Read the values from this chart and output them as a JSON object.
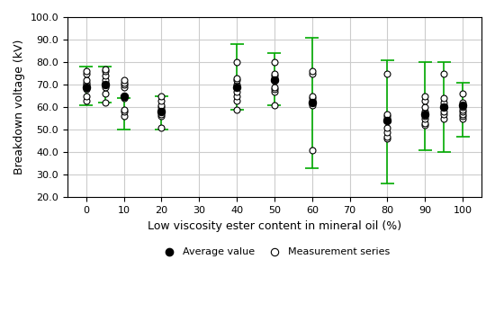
{
  "x_positions": [
    0,
    5,
    10,
    20,
    40,
    50,
    60,
    80,
    90,
    95,
    100
  ],
  "avg_values": [
    69,
    70,
    65,
    58,
    69,
    72,
    62,
    54,
    57,
    60,
    61
  ],
  "error_bars": {
    "0": [
      61,
      78
    ],
    "5": [
      62,
      78
    ],
    "10": [
      50,
      64
    ],
    "20": [
      50,
      65
    ],
    "40": [
      59,
      88
    ],
    "50": [
      61,
      84
    ],
    "60": [
      33,
      91
    ],
    "80": [
      26,
      81
    ],
    "90": [
      41,
      80
    ],
    "95": [
      40,
      80
    ],
    "100": [
      47,
      71
    ]
  },
  "measurement_series": {
    "0": [
      63,
      65,
      68,
      69,
      70,
      71,
      72,
      75,
      76
    ],
    "5": [
      62,
      66,
      69,
      70,
      71,
      72,
      74,
      76,
      77
    ],
    "10": [
      56,
      58,
      59,
      64,
      65,
      69,
      70,
      71,
      72
    ],
    "20": [
      51,
      56,
      57,
      58,
      59,
      60,
      61,
      63,
      65
    ],
    "40": [
      59,
      63,
      65,
      67,
      69,
      70,
      72,
      73,
      80
    ],
    "50": [
      61,
      67,
      68,
      69,
      72,
      73,
      74,
      75,
      80
    ],
    "60": [
      41,
      61,
      62,
      62,
      63,
      64,
      65,
      75,
      76
    ],
    "80": [
      46,
      47,
      49,
      51,
      54,
      55,
      56,
      57,
      75
    ],
    "90": [
      52,
      53,
      55,
      56,
      57,
      58,
      60,
      63,
      65
    ],
    "95": [
      55,
      57,
      58,
      60,
      60,
      61,
      62,
      64,
      75
    ],
    "100": [
      55,
      56,
      57,
      58,
      59,
      60,
      61,
      62,
      66
    ]
  },
  "xlabel": "Low viscosity ester content in mineral oil (%)",
  "ylabel": "Breakdown voltage (kV)",
  "xlim": [
    -5,
    105
  ],
  "ylim": [
    20,
    100
  ],
  "yticks": [
    20.0,
    30.0,
    40.0,
    50.0,
    60.0,
    70.0,
    80.0,
    90.0,
    100.0
  ],
  "xticks": [
    0,
    10,
    20,
    30,
    40,
    50,
    60,
    70,
    80,
    90,
    100
  ],
  "error_color": "#00aa00",
  "avg_color": "#000000",
  "meas_color": "#000000",
  "bg_color": "#ffffff",
  "grid_color": "#cccccc"
}
